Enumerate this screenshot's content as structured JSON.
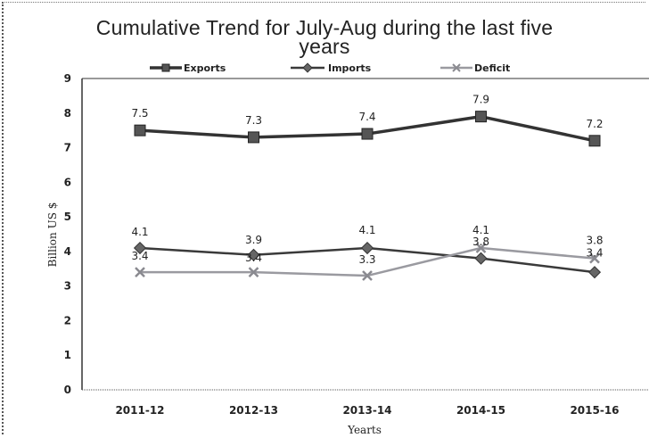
{
  "chart_data": {
    "type": "line",
    "title_line1": "Cumulative Trend for July-Aug during the last five",
    "title_line2": "years",
    "xlabel": "Yearts",
    "ylabel": "Billion US $",
    "categories": [
      "2011-12",
      "2012-13",
      "2013-14",
      "2014-15",
      "2015-16"
    ],
    "ylim": [
      0,
      9
    ],
    "yticks": [
      0,
      1,
      2,
      3,
      4,
      5,
      6,
      7,
      8,
      9
    ],
    "legend_position": "top",
    "grid": false,
    "series": [
      {
        "name": "Exports",
        "values": [
          7.5,
          7.3,
          7.4,
          7.9,
          7.2
        ],
        "labels": [
          "7.5",
          "7.3",
          "7.4",
          "7.9",
          "7.2"
        ],
        "color": "#333333"
      },
      {
        "name": "Imports",
        "values": [
          4.1,
          3.9,
          4.1,
          3.8,
          3.4
        ],
        "labels": [
          "4.1",
          "3.9",
          "4.1",
          "3.8",
          "3.4"
        ],
        "color": "#3a3a3a"
      },
      {
        "name": "Deficit",
        "values": [
          3.4,
          3.4,
          3.3,
          4.1,
          3.8
        ],
        "labels": [
          "3.4",
          "3.4",
          "3.3",
          "4.1",
          "3.8"
        ],
        "color": "#9a9aa0"
      }
    ]
  }
}
